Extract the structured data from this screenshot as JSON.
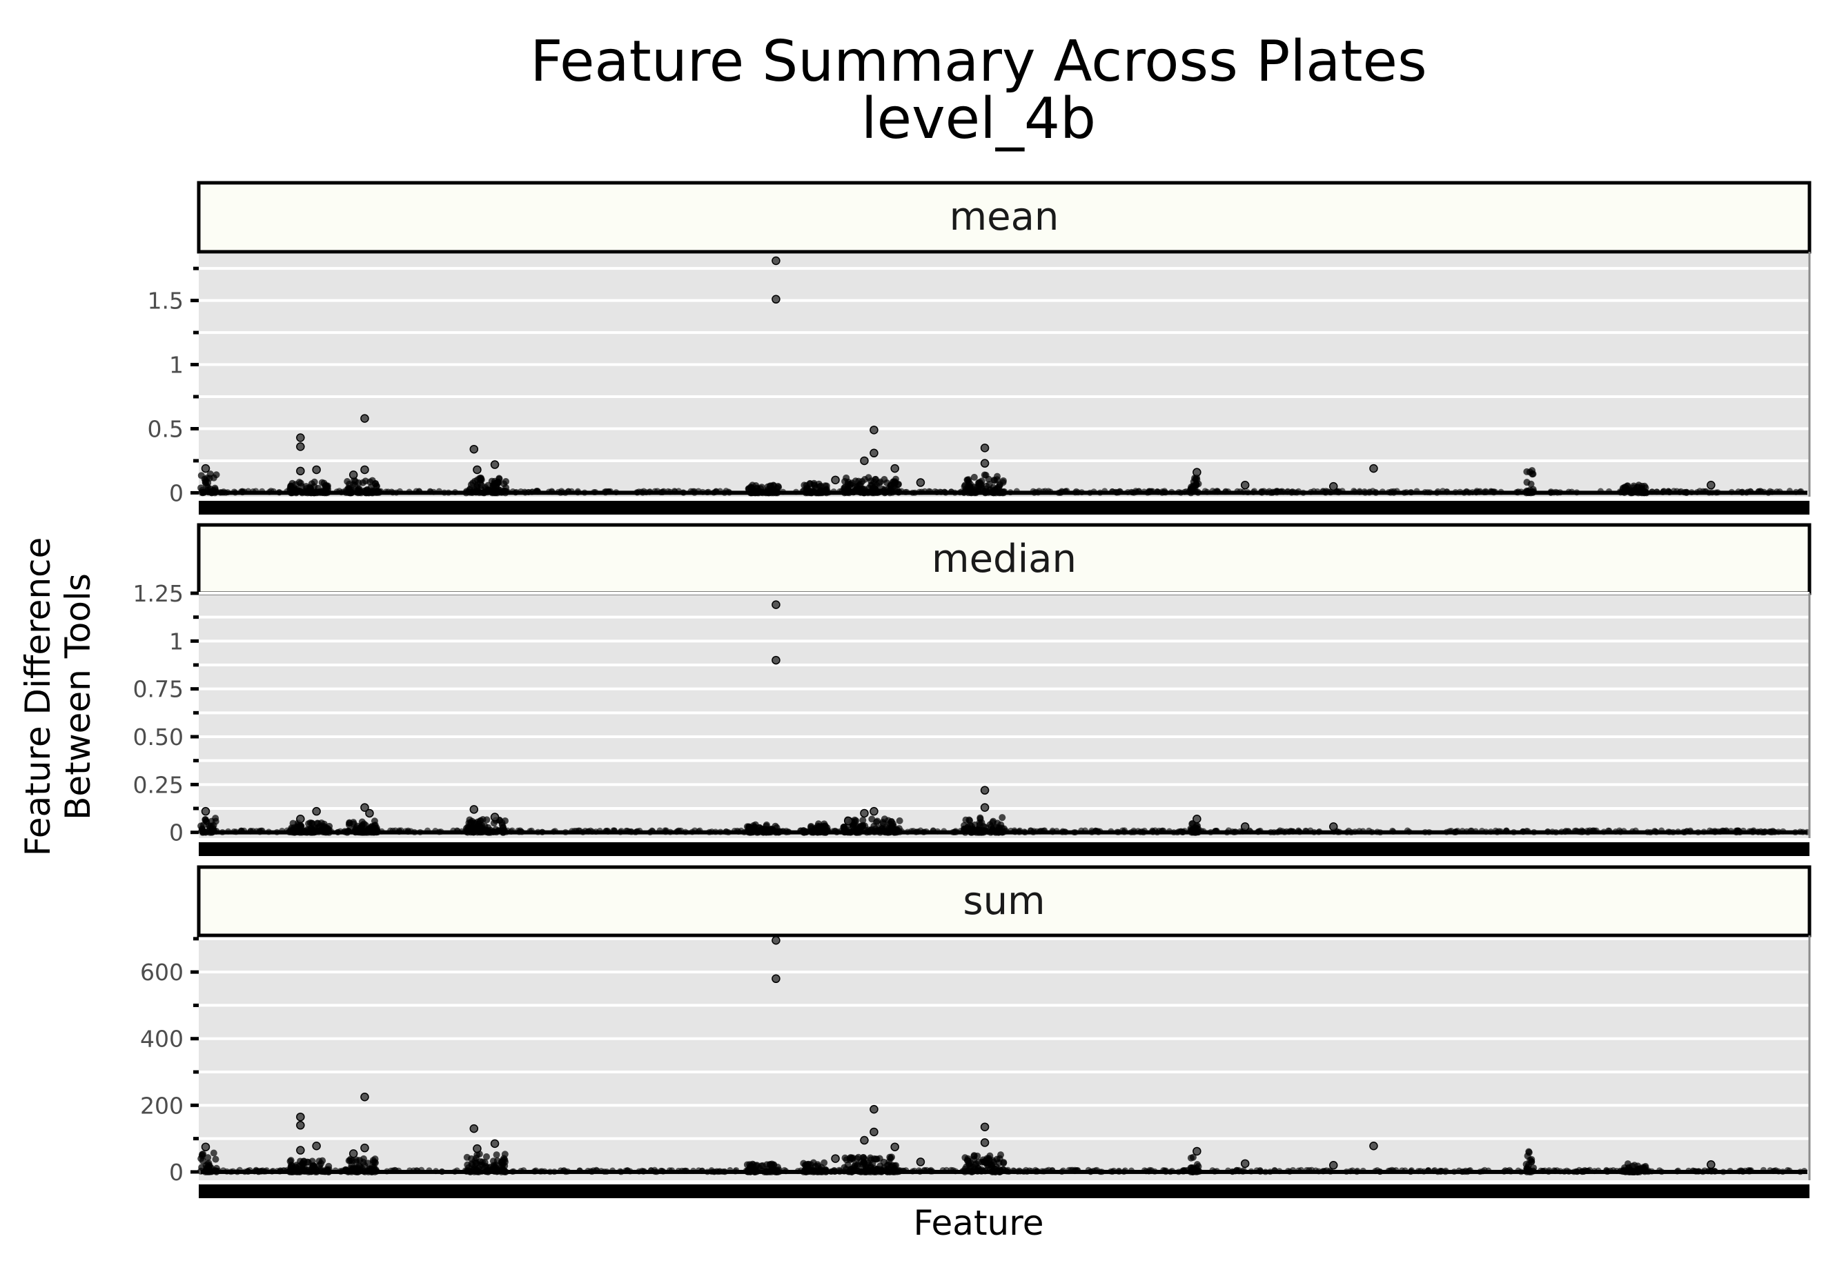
{
  "chart_data": {
    "type": "scatter",
    "title": "Feature Summary Across Plates",
    "subtitle": "level_4b",
    "xlabel": "Feature",
    "ylabel": "Feature Difference\nBetween Tools",
    "ylabel_lines": [
      "Feature Difference",
      "Between Tools"
    ],
    "grid": true,
    "legend": "none",
    "colors": {
      "panel_bg": "#e5e5e5",
      "strip_bg": "#fcfdf5",
      "grid": "#ffffff",
      "points": "#000000"
    },
    "facets": [
      {
        "name": "mean",
        "ylim": [
          -0.03,
          1.88
        ],
        "yticks": [
          0,
          0.5,
          1,
          1.5
        ],
        "ytick_labels": [
          "0",
          "0.5",
          "1",
          "1.5"
        ],
        "minor_ticks": [
          0.25,
          0.75,
          1.25,
          1.75
        ],
        "highlights": [
          {
            "x": 0.358,
            "y": 1.81
          },
          {
            "x": 0.358,
            "y": 1.51
          },
          {
            "x": 0.102,
            "y": 0.58
          },
          {
            "x": 0.419,
            "y": 0.49
          },
          {
            "x": 0.062,
            "y": 0.43
          },
          {
            "x": 0.062,
            "y": 0.36
          },
          {
            "x": 0.17,
            "y": 0.34
          },
          {
            "x": 0.488,
            "y": 0.35
          },
          {
            "x": 0.419,
            "y": 0.31
          },
          {
            "x": 0.413,
            "y": 0.25
          },
          {
            "x": 0.488,
            "y": 0.23
          },
          {
            "x": 0.183,
            "y": 0.22
          },
          {
            "x": 0.172,
            "y": 0.18
          },
          {
            "x": 0.432,
            "y": 0.19
          },
          {
            "x": 0.102,
            "y": 0.18
          },
          {
            "x": 0.73,
            "y": 0.19
          },
          {
            "x": 0.62,
            "y": 0.16
          },
          {
            "x": 0.003,
            "y": 0.19
          },
          {
            "x": 0.072,
            "y": 0.18
          },
          {
            "x": 0.062,
            "y": 0.17
          },
          {
            "x": 0.095,
            "y": 0.14
          },
          {
            "x": 0.395,
            "y": 0.1
          },
          {
            "x": 0.448,
            "y": 0.08
          },
          {
            "x": 0.65,
            "y": 0.06
          },
          {
            "x": 0.705,
            "y": 0.05
          },
          {
            "x": 0.94,
            "y": 0.06
          }
        ],
        "clusters": [
          {
            "x0": 0,
            "x1": 0.01,
            "ymax": 0.16
          },
          {
            "x0": 0.055,
            "x1": 0.08,
            "ymax": 0.09
          },
          {
            "x0": 0.09,
            "x1": 0.11,
            "ymax": 0.1
          },
          {
            "x0": 0.165,
            "x1": 0.19,
            "ymax": 0.14
          },
          {
            "x0": 0.34,
            "x1": 0.36,
            "ymax": 0.06
          },
          {
            "x0": 0.375,
            "x1": 0.39,
            "ymax": 0.08
          },
          {
            "x0": 0.4,
            "x1": 0.435,
            "ymax": 0.12
          },
          {
            "x0": 0.475,
            "x1": 0.5,
            "ymax": 0.14
          },
          {
            "x0": 0.616,
            "x1": 0.621,
            "ymax": 0.12
          },
          {
            "x0": 0.825,
            "x1": 0.83,
            "ymax": 0.18
          },
          {
            "x0": 0.885,
            "x1": 0.9,
            "ymax": 0.06
          }
        ]
      },
      {
        "name": "median",
        "ylim": [
          -0.03,
          1.25
        ],
        "yticks": [
          0,
          0.25,
          0.5,
          0.75,
          1,
          1.25
        ],
        "ytick_labels": [
          "0",
          "0.25",
          "0.50",
          "0.75",
          "1",
          "1.25"
        ],
        "minor_ticks": [
          0.125,
          0.375,
          0.625,
          0.875,
          1.125
        ],
        "highlights": [
          {
            "x": 0.358,
            "y": 1.19
          },
          {
            "x": 0.358,
            "y": 0.9
          },
          {
            "x": 0.488,
            "y": 0.22
          },
          {
            "x": 0.102,
            "y": 0.13
          },
          {
            "x": 0.17,
            "y": 0.12
          },
          {
            "x": 0.488,
            "y": 0.13
          },
          {
            "x": 0.413,
            "y": 0.1
          },
          {
            "x": 0.419,
            "y": 0.11
          },
          {
            "x": 0.072,
            "y": 0.11
          },
          {
            "x": 0.003,
            "y": 0.11
          },
          {
            "x": 0.105,
            "y": 0.1
          },
          {
            "x": 0.183,
            "y": 0.08
          },
          {
            "x": 0.062,
            "y": 0.07
          },
          {
            "x": 0.62,
            "y": 0.07
          },
          {
            "x": 0.403,
            "y": 0.06
          },
          {
            "x": 0.65,
            "y": 0.03
          },
          {
            "x": 0.705,
            "y": 0.03
          }
        ],
        "clusters": [
          {
            "x0": 0,
            "x1": 0.01,
            "ymax": 0.08
          },
          {
            "x0": 0.055,
            "x1": 0.08,
            "ymax": 0.05
          },
          {
            "x0": 0.09,
            "x1": 0.11,
            "ymax": 0.06
          },
          {
            "x0": 0.165,
            "x1": 0.19,
            "ymax": 0.07
          },
          {
            "x0": 0.34,
            "x1": 0.36,
            "ymax": 0.04
          },
          {
            "x0": 0.375,
            "x1": 0.39,
            "ymax": 0.05
          },
          {
            "x0": 0.4,
            "x1": 0.435,
            "ymax": 0.07
          },
          {
            "x0": 0.475,
            "x1": 0.5,
            "ymax": 0.08
          },
          {
            "x0": 0.616,
            "x1": 0.621,
            "ymax": 0.06
          }
        ]
      },
      {
        "name": "sum",
        "ylim": [
          -25,
          710
        ],
        "yticks": [
          0,
          200,
          400,
          600
        ],
        "ytick_labels": [
          "0",
          "200",
          "400",
          "600"
        ],
        "minor_ticks": [
          100,
          300,
          500,
          700
        ],
        "highlights": [
          {
            "x": 0.358,
            "y": 695
          },
          {
            "x": 0.358,
            "y": 580
          },
          {
            "x": 0.102,
            "y": 225
          },
          {
            "x": 0.419,
            "y": 188
          },
          {
            "x": 0.062,
            "y": 165
          },
          {
            "x": 0.062,
            "y": 140
          },
          {
            "x": 0.17,
            "y": 130
          },
          {
            "x": 0.488,
            "y": 135
          },
          {
            "x": 0.419,
            "y": 120
          },
          {
            "x": 0.413,
            "y": 95
          },
          {
            "x": 0.488,
            "y": 88
          },
          {
            "x": 0.183,
            "y": 85
          },
          {
            "x": 0.432,
            "y": 75
          },
          {
            "x": 0.102,
            "y": 72
          },
          {
            "x": 0.072,
            "y": 78
          },
          {
            "x": 0.003,
            "y": 75
          },
          {
            "x": 0.73,
            "y": 78
          },
          {
            "x": 0.62,
            "y": 62
          },
          {
            "x": 0.062,
            "y": 65
          },
          {
            "x": 0.172,
            "y": 70
          },
          {
            "x": 0.095,
            "y": 55
          },
          {
            "x": 0.395,
            "y": 40
          },
          {
            "x": 0.448,
            "y": 30
          },
          {
            "x": 0.65,
            "y": 25
          },
          {
            "x": 0.705,
            "y": 20
          },
          {
            "x": 0.94,
            "y": 22
          }
        ],
        "clusters": [
          {
            "x0": 0,
            "x1": 0.01,
            "ymax": 60
          },
          {
            "x0": 0.055,
            "x1": 0.08,
            "ymax": 35
          },
          {
            "x0": 0.09,
            "x1": 0.11,
            "ymax": 40
          },
          {
            "x0": 0.165,
            "x1": 0.19,
            "ymax": 55
          },
          {
            "x0": 0.34,
            "x1": 0.36,
            "ymax": 25
          },
          {
            "x0": 0.375,
            "x1": 0.39,
            "ymax": 30
          },
          {
            "x0": 0.4,
            "x1": 0.435,
            "ymax": 45
          },
          {
            "x0": 0.475,
            "x1": 0.5,
            "ymax": 55
          },
          {
            "x0": 0.616,
            "x1": 0.621,
            "ymax": 45
          },
          {
            "x0": 0.825,
            "x1": 0.83,
            "ymax": 70
          },
          {
            "x0": 0.885,
            "x1": 0.9,
            "ymax": 25
          }
        ]
      }
    ]
  }
}
